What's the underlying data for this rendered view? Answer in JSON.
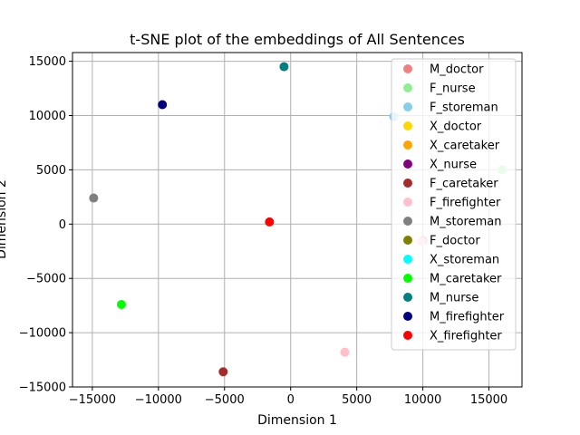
{
  "chart_data": {
    "type": "scatter",
    "title": "t-SNE plot of the embeddings of All Sentences",
    "xlabel": "Dimension 1",
    "ylabel": "Dimension 2",
    "xlim": [
      -16500,
      17500
    ],
    "ylim": [
      -15000,
      15800
    ],
    "xticks": [
      -15000,
      -10000,
      -5000,
      0,
      5000,
      10000,
      15000
    ],
    "yticks": [
      -15000,
      -10000,
      -5000,
      0,
      5000,
      10000,
      15000
    ],
    "xtick_labels": [
      "−15000",
      "−10000",
      "−5000",
      "0",
      "5000",
      "10000",
      "15000"
    ],
    "ytick_labels": [
      "−15000",
      "−10000",
      "−5000",
      "0",
      "5000",
      "10000",
      "15000"
    ],
    "grid": true,
    "legend_position": "top-right",
    "series": [
      {
        "name": "M_doctor",
        "color": "#f08080",
        "points": [
          [
            10000,
            -1500
          ]
        ]
      },
      {
        "name": "F_nurse",
        "color": "#90ee90",
        "points": [
          [
            16000,
            5000
          ]
        ]
      },
      {
        "name": "F_storeman",
        "color": "#87ceeb",
        "points": [
          [
            7800,
            9900
          ]
        ]
      },
      {
        "name": "X_doctor",
        "color": "#ffd700",
        "points": []
      },
      {
        "name": "X_caretaker",
        "color": "#ffa500",
        "points": []
      },
      {
        "name": "X_nurse",
        "color": "#800080",
        "points": []
      },
      {
        "name": "F_caretaker",
        "color": "#a52a2a",
        "points": [
          [
            -5100,
            -13600
          ]
        ]
      },
      {
        "name": "F_firefighter",
        "color": "#ffc0cb",
        "points": [
          [
            4100,
            -11800
          ],
          [
            9900,
            -1600
          ]
        ]
      },
      {
        "name": "M_storeman",
        "color": "#808080",
        "points": [
          [
            -14900,
            2400
          ]
        ]
      },
      {
        "name": "F_doctor",
        "color": "#808000",
        "points": []
      },
      {
        "name": "X_storeman",
        "color": "#00ffff",
        "points": []
      },
      {
        "name": "M_caretaker",
        "color": "#00ff00",
        "points": [
          [
            -12800,
            -7400
          ]
        ]
      },
      {
        "name": "M_nurse",
        "color": "#008080",
        "points": [
          [
            -500,
            14500
          ]
        ]
      },
      {
        "name": "M_firefighter",
        "color": "#000080",
        "points": [
          [
            -9700,
            11000
          ]
        ]
      },
      {
        "name": "X_firefighter",
        "color": "#ff0000",
        "points": [
          [
            -1600,
            200
          ]
        ]
      }
    ]
  }
}
